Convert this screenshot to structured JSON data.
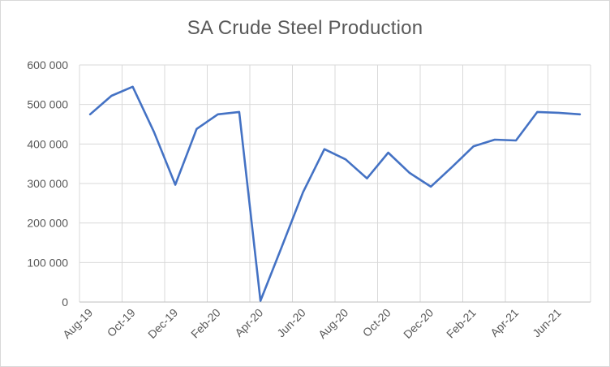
{
  "chart_data": {
    "type": "line",
    "title": "SA Crude Steel Production",
    "xlabel": "",
    "ylabel": "",
    "x": [
      "Aug-19",
      "Sep-19",
      "Oct-19",
      "Nov-19",
      "Dec-19",
      "Jan-20",
      "Feb-20",
      "Mar-20",
      "Apr-20",
      "May-20",
      "Jun-20",
      "Jul-20",
      "Aug-20",
      "Sep-20",
      "Oct-20",
      "Nov-20",
      "Dec-20",
      "Jan-21",
      "Feb-21",
      "Mar-21",
      "Apr-21",
      "May-21",
      "Jun-21",
      "Jul-21"
    ],
    "x_tick_labels": [
      "Aug-19",
      "Oct-19",
      "Dec-19",
      "Feb-20",
      "Apr-20",
      "Jun-20",
      "Aug-20",
      "Oct-20",
      "Dec-20",
      "Feb-21",
      "Apr-21",
      "Jun-21"
    ],
    "y_tick_labels": [
      "0",
      "100 000",
      "200 000",
      "300 000",
      "400 000",
      "500 000",
      "600 000"
    ],
    "ylim": [
      0,
      600000
    ],
    "grid": true,
    "legend": "none",
    "series": [
      {
        "values": [
          475000,
          522000,
          545000,
          430000,
          297000,
          438000,
          475000,
          481000,
          3000,
          140000,
          278000,
          387000,
          361000,
          313000,
          378000,
          327000,
          292000,
          342000,
          394000,
          411000,
          409000,
          481000,
          479000,
          475000
        ],
        "color": "#4472c4"
      }
    ]
  }
}
